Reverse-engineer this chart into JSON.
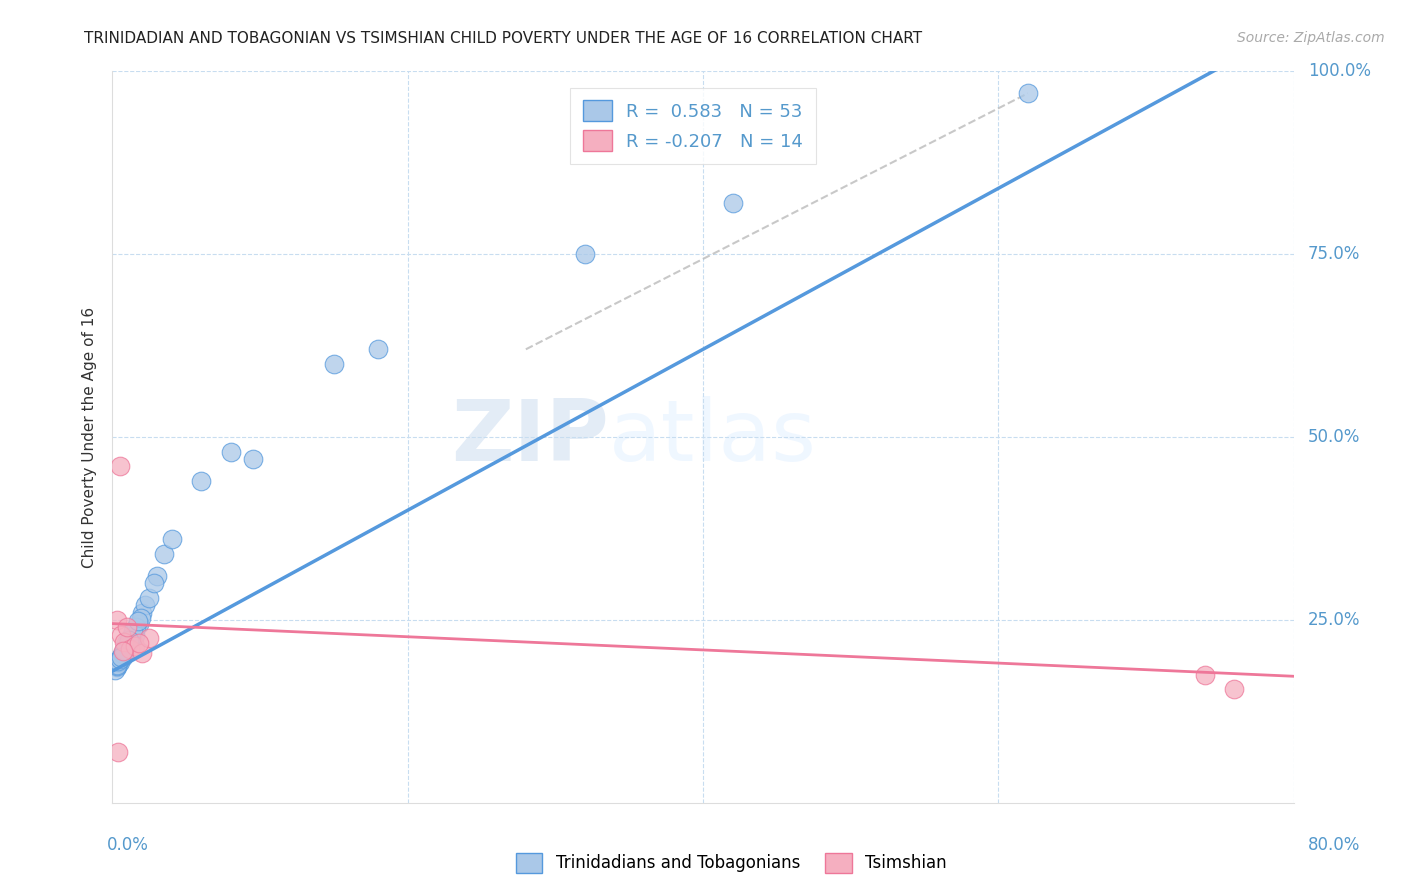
{
  "title": "TRINIDADIAN AND TOBAGONIAN VS TSIMSHIAN CHILD POVERTY UNDER THE AGE OF 16 CORRELATION CHART",
  "source": "Source: ZipAtlas.com",
  "ylabel": "Child Poverty Under the Age of 16",
  "ytick_values": [
    0.0,
    0.25,
    0.5,
    0.75,
    1.0
  ],
  "xlim": [
    0.0,
    0.8
  ],
  "ylim": [
    0.0,
    1.0
  ],
  "legend_label1": "Trinidadians and Tobagonians",
  "legend_label2": "Tsimshian",
  "R1": 0.583,
  "N1": 53,
  "R2": -0.207,
  "N2": 14,
  "color_blue": "#aac8e8",
  "color_pink": "#f5afc0",
  "line_blue": "#5599dd",
  "line_pink": "#ee7799",
  "watermark_zip": "ZIP",
  "watermark_atlas": "atlas",
  "title_color": "#222222",
  "axis_color": "#5599cc",
  "blue_scatter_x": [
    0.005,
    0.007,
    0.003,
    0.008,
    0.004,
    0.006,
    0.009,
    0.002,
    0.005,
    0.003,
    0.01,
    0.012,
    0.008,
    0.006,
    0.004,
    0.007,
    0.009,
    0.011,
    0.005,
    0.008,
    0.003,
    0.006,
    0.01,
    0.004,
    0.007,
    0.009,
    0.005,
    0.008,
    0.012,
    0.006,
    0.015,
    0.018,
    0.013,
    0.02,
    0.016,
    0.014,
    0.022,
    0.019,
    0.011,
    0.017,
    0.025,
    0.03,
    0.028,
    0.035,
    0.04,
    0.06,
    0.08,
    0.095,
    0.15,
    0.18,
    0.32,
    0.42,
    0.62
  ],
  "blue_scatter_y": [
    0.195,
    0.2,
    0.185,
    0.205,
    0.19,
    0.198,
    0.21,
    0.182,
    0.193,
    0.187,
    0.215,
    0.225,
    0.208,
    0.2,
    0.192,
    0.202,
    0.218,
    0.22,
    0.196,
    0.207,
    0.188,
    0.201,
    0.216,
    0.194,
    0.204,
    0.212,
    0.197,
    0.209,
    0.223,
    0.2,
    0.23,
    0.245,
    0.228,
    0.26,
    0.24,
    0.235,
    0.27,
    0.252,
    0.222,
    0.248,
    0.28,
    0.31,
    0.3,
    0.34,
    0.36,
    0.44,
    0.48,
    0.47,
    0.6,
    0.62,
    0.75,
    0.82,
    0.97
  ],
  "pink_scatter_x": [
    0.003,
    0.006,
    0.008,
    0.01,
    0.005,
    0.012,
    0.015,
    0.02,
    0.025,
    0.018,
    0.007,
    0.004,
    0.74,
    0.76
  ],
  "pink_scatter_y": [
    0.25,
    0.23,
    0.22,
    0.24,
    0.46,
    0.21,
    0.215,
    0.205,
    0.225,
    0.218,
    0.208,
    0.07,
    0.175,
    0.155
  ],
  "blue_line_x": [
    0.0,
    0.8
  ],
  "blue_line_y_intercept": 0.18,
  "blue_line_slope": 1.1,
  "pink_line_x": [
    0.0,
    0.8
  ],
  "pink_line_y_intercept": 0.245,
  "pink_line_slope": -0.09,
  "dash_line_x": [
    0.28,
    0.62
  ],
  "dash_line_y": [
    0.62,
    0.97
  ]
}
